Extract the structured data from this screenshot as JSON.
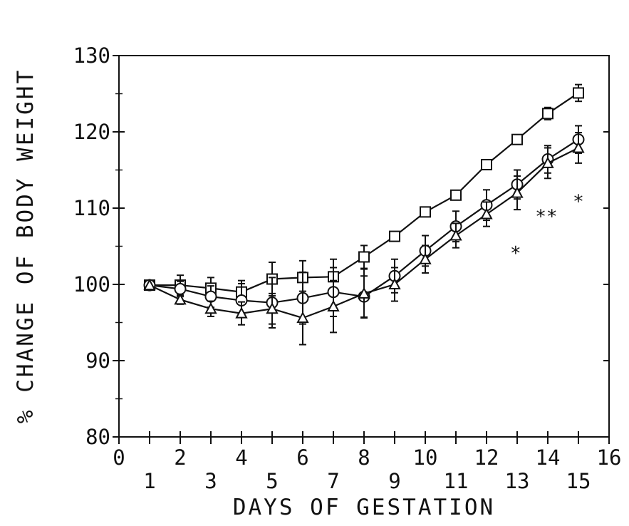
{
  "chart_data": {
    "type": "line",
    "title": "",
    "xlabel": "DAYS OF GESTATION",
    "ylabel": "% CHANGE OF BODY WEIGHT",
    "xlim": [
      0,
      16
    ],
    "ylim": [
      80,
      130
    ],
    "x_ticks_major": [
      0,
      2,
      4,
      6,
      8,
      10,
      12,
      14,
      16
    ],
    "x_ticks_minor": [
      1,
      3,
      5,
      7,
      9,
      11,
      13,
      15
    ],
    "y_ticks": [
      80,
      90,
      100,
      110,
      120,
      130
    ],
    "grid": false,
    "legend": "none",
    "series": [
      {
        "marker": "square",
        "x": [
          1,
          2,
          3,
          4,
          5,
          6,
          7,
          8,
          9,
          10,
          11,
          12,
          13,
          14,
          15
        ],
        "y": [
          99.9,
          99.9,
          99.5,
          99.0,
          100.7,
          100.9,
          101.0,
          103.6,
          106.3,
          109.5,
          111.7,
          115.7,
          119.0,
          122.4,
          125.1
        ],
        "err": [
          0,
          1.3,
          1.4,
          1.5,
          2.2,
          2.2,
          2.3,
          1.5,
          0.6,
          0.6,
          0.6,
          0.5,
          0.5,
          0.8,
          1.1
        ]
      },
      {
        "marker": "circle",
        "x": [
          1,
          2,
          3,
          4,
          5,
          6,
          7,
          8,
          9,
          10,
          11,
          12,
          13,
          14,
          15
        ],
        "y": [
          99.9,
          99.4,
          98.4,
          97.9,
          97.6,
          98.2,
          99.0,
          98.4,
          101.1,
          104.4,
          107.6,
          110.4,
          113.1,
          116.4,
          119.0
        ],
        "err": [
          0,
          1.0,
          1.4,
          2.2,
          3.3,
          3.4,
          3.2,
          2.7,
          2.2,
          2.0,
          2.0,
          2.0,
          1.9,
          1.8,
          1.8
        ]
      },
      {
        "marker": "triangle",
        "x": [
          1,
          2,
          3,
          4,
          5,
          6,
          7,
          8,
          9,
          10,
          11,
          12,
          13,
          14,
          15
        ],
        "y": [
          99.9,
          98.0,
          96.8,
          96.2,
          96.8,
          95.6,
          97.1,
          98.8,
          100.0,
          103.3,
          106.4,
          109.2,
          112.0,
          115.9,
          117.9
        ],
        "err": [
          0,
          0.6,
          1.0,
          1.5,
          2.0,
          3.5,
          3.4,
          3.2,
          2.2,
          1.8,
          1.6,
          1.6,
          2.2,
          2.0,
          2.0
        ]
      }
    ],
    "annotations": [
      {
        "text": "*",
        "x": 12.95,
        "y": 104.2
      },
      {
        "text": "**",
        "x": 13.95,
        "y": 109.0
      },
      {
        "text": "*",
        "x": 15.0,
        "y": 111.0
      }
    ]
  }
}
